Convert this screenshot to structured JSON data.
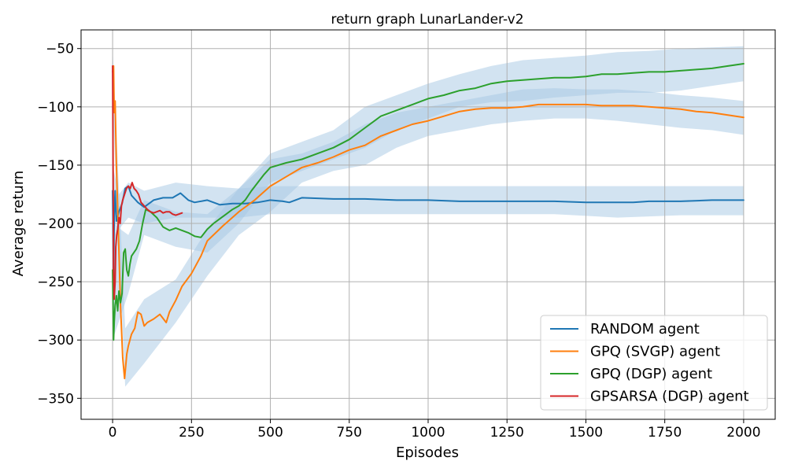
{
  "chart_data": {
    "type": "line",
    "title": "return graph LunarLander-v2",
    "xlabel": "Episodes",
    "ylabel": "Average return",
    "xlim": [
      -100,
      2100
    ],
    "ylim": [
      -368,
      -34
    ],
    "xticks": [
      0,
      250,
      500,
      750,
      1000,
      1250,
      1500,
      1750,
      2000
    ],
    "yticks": [
      -350,
      -300,
      -250,
      -200,
      -150,
      -100,
      -50
    ],
    "xtick_labels": [
      "0",
      "250",
      "500",
      "750",
      "1000",
      "1250",
      "1500",
      "1750",
      "2000"
    ],
    "ytick_labels": [
      "−350",
      "−300",
      "−250",
      "−200",
      "−150",
      "−100",
      "−50"
    ],
    "grid": true,
    "legend_position": "lower-right",
    "band_color": "#a6c8e4",
    "series": [
      {
        "name": "RANDOM agent",
        "color": "#1f77b4",
        "x": [
          0,
          3,
          5,
          8,
          12,
          20,
          30,
          40,
          50,
          60,
          80,
          100,
          130,
          160,
          190,
          215,
          240,
          260,
          300,
          340,
          380,
          420,
          460,
          500,
          540,
          560,
          600,
          700,
          800,
          900,
          1000,
          1100,
          1200,
          1300,
          1400,
          1500,
          1600,
          1650,
          1700,
          1800,
          1900,
          2000
        ],
        "y": [
          -172,
          -245,
          -195,
          -172,
          -198,
          -190,
          -183,
          -170,
          -168,
          -176,
          -182,
          -186,
          -180,
          -178,
          -178,
          -174,
          -180,
          -182,
          -180,
          -184,
          -183,
          -183,
          -182,
          -180,
          -181,
          -182,
          -178,
          -179,
          -179,
          -180,
          -180,
          -181,
          -181,
          -181,
          -181,
          -182,
          -182,
          -182,
          -181,
          -181,
          -180,
          -180
        ],
        "band_x": [
          0,
          20,
          50,
          100,
          200,
          300,
          400,
          500,
          600,
          800,
          1000,
          1200,
          1400,
          1600,
          1800,
          2000
        ],
        "band_upper": [
          -150,
          -175,
          -165,
          -172,
          -165,
          -168,
          -170,
          -168,
          -168,
          -168,
          -168,
          -168,
          -168,
          -168,
          -168,
          -168
        ],
        "band_lower": [
          -200,
          -205,
          -195,
          -200,
          -195,
          -195,
          -195,
          -192,
          -192,
          -192,
          -192,
          -192,
          -192,
          -195,
          -193,
          -193
        ]
      },
      {
        "name": "GPQ (SVGP) agent",
        "color": "#ff7f0e",
        "x": [
          0,
          3,
          5,
          8,
          12,
          18,
          25,
          32,
          38,
          45,
          50,
          60,
          70,
          80,
          90,
          100,
          110,
          130,
          150,
          170,
          180,
          200,
          220,
          250,
          280,
          300,
          350,
          400,
          450,
          500,
          550,
          600,
          650,
          700,
          750,
          800,
          850,
          900,
          950,
          1000,
          1050,
          1100,
          1150,
          1200,
          1250,
          1300,
          1350,
          1400,
          1450,
          1500,
          1550,
          1600,
          1650,
          1700,
          1750,
          1800,
          1850,
          1900,
          1950,
          2000
        ],
        "y": [
          -70,
          -65,
          -105,
          -95,
          -150,
          -205,
          -270,
          -315,
          -333,
          -312,
          -305,
          -295,
          -290,
          -276,
          -278,
          -288,
          -285,
          -282,
          -278,
          -285,
          -276,
          -266,
          -254,
          -243,
          -228,
          -215,
          -202,
          -190,
          -180,
          -168,
          -160,
          -152,
          -148,
          -143,
          -137,
          -133,
          -125,
          -120,
          -115,
          -112,
          -108,
          -104,
          -102,
          -101,
          -101,
          -100,
          -98,
          -98,
          -98,
          -98,
          -99,
          -99,
          -99,
          -100,
          -101,
          -102,
          -104,
          -105,
          -107,
          -109
        ],
        "band_x": [
          0,
          40,
          100,
          200,
          300,
          400,
          500,
          600,
          700,
          800,
          900,
          1000,
          1100,
          1200,
          1300,
          1400,
          1500,
          1600,
          1700,
          1800,
          1900,
          2000
        ],
        "band_upper": [
          -50,
          -290,
          -265,
          -248,
          -205,
          -170,
          -145,
          -140,
          -130,
          -115,
          -105,
          -100,
          -95,
          -90,
          -85,
          -84,
          -85,
          -85,
          -87,
          -90,
          -92,
          -95
        ],
        "band_lower": [
          -100,
          -340,
          -320,
          -285,
          -245,
          -210,
          -190,
          -165,
          -155,
          -150,
          -135,
          -125,
          -120,
          -115,
          -112,
          -110,
          -110,
          -112,
          -115,
          -118,
          -120,
          -124
        ]
      },
      {
        "name": "GPQ (DGP) agent",
        "color": "#2ca02c",
        "x": [
          0,
          3,
          5,
          8,
          12,
          16,
          20,
          25,
          30,
          35,
          40,
          45,
          50,
          55,
          60,
          65,
          75,
          85,
          95,
          105,
          120,
          140,
          160,
          180,
          200,
          220,
          240,
          260,
          280,
          300,
          320,
          340,
          360,
          380,
          400,
          420,
          440,
          460,
          480,
          500,
          550,
          600,
          650,
          700,
          750,
          800,
          850,
          900,
          950,
          1000,
          1050,
          1100,
          1150,
          1200,
          1250,
          1300,
          1350,
          1400,
          1450,
          1500,
          1550,
          1600,
          1650,
          1700,
          1750,
          1800,
          1850,
          1900,
          1950,
          2000
        ],
        "y": [
          -240,
          -300,
          -285,
          -270,
          -262,
          -275,
          -258,
          -268,
          -260,
          -225,
          -222,
          -240,
          -245,
          -235,
          -228,
          -226,
          -222,
          -215,
          -200,
          -188,
          -190,
          -195,
          -203,
          -206,
          -204,
          -206,
          -208,
          -211,
          -212,
          -205,
          -200,
          -196,
          -192,
          -188,
          -185,
          -180,
          -172,
          -165,
          -158,
          -152,
          -148,
          -145,
          -140,
          -135,
          -128,
          -118,
          -108,
          -103,
          -98,
          -93,
          -90,
          -86,
          -84,
          -80,
          -78,
          -77,
          -76,
          -75,
          -75,
          -74,
          -72,
          -72,
          -71,
          -70,
          -70,
          -69,
          -68,
          -67,
          -65,
          -63
        ],
        "band_x": [
          0,
          50,
          100,
          200,
          300,
          400,
          500,
          600,
          700,
          800,
          900,
          1000,
          1100,
          1200,
          1300,
          1400,
          1500,
          1600,
          1700,
          1800,
          1900,
          2000
        ],
        "band_upper": [
          -200,
          -210,
          -180,
          -190,
          -192,
          -170,
          -140,
          -130,
          -120,
          -100,
          -90,
          -80,
          -72,
          -65,
          -60,
          -58,
          -56,
          -53,
          -52,
          -50,
          -49,
          -48
        ],
        "band_lower": [
          -300,
          -260,
          -210,
          -220,
          -225,
          -200,
          -165,
          -155,
          -145,
          -135,
          -120,
          -110,
          -100,
          -96,
          -95,
          -92,
          -90,
          -88,
          -88,
          -86,
          -82,
          -78
        ]
      },
      {
        "name": "GPSARSA (DGP) agent",
        "color": "#d62728",
        "x": [
          0,
          3,
          5,
          8,
          10,
          13,
          16,
          20,
          24,
          28,
          32,
          38,
          44,
          50,
          56,
          62,
          68,
          75,
          82,
          90,
          100,
          110,
          120,
          130,
          140,
          150,
          160,
          170,
          180,
          190,
          200,
          210,
          220
        ],
        "y": [
          -65,
          -240,
          -265,
          -250,
          -220,
          -210,
          -205,
          -195,
          -200,
          -185,
          -180,
          -175,
          -170,
          -168,
          -170,
          -165,
          -170,
          -172,
          -175,
          -182,
          -185,
          -188,
          -190,
          -191,
          -190,
          -189,
          -191,
          -190,
          -190,
          -192,
          -193,
          -192,
          -191
        ]
      }
    ]
  }
}
